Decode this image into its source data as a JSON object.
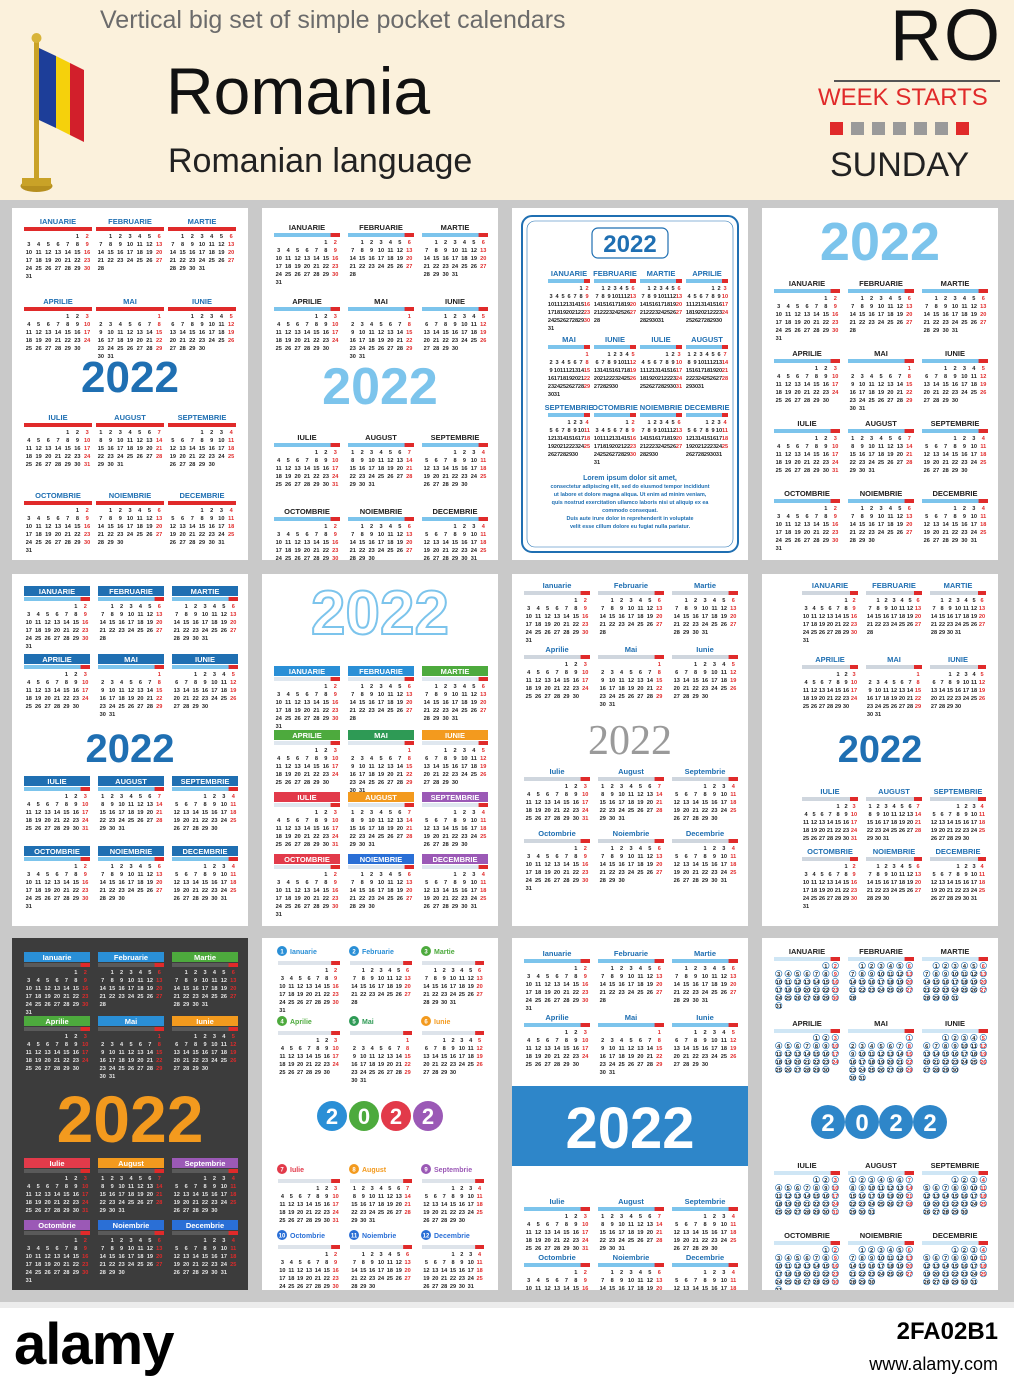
{
  "header": {
    "subtitle": "Vertical big set of simple pocket calendars",
    "country": "Romania",
    "language": "Romanian language",
    "code": "RO",
    "week_starts": "WEEK STARTS",
    "start_day": "SUNDAY"
  },
  "year": "2022",
  "year_digits": [
    "2",
    "0",
    "2",
    "2"
  ],
  "months_upper": [
    "IANUARIE",
    "FEBRUARIE",
    "MARTIE",
    "APRILIE",
    "MAI",
    "IUNIE",
    "IULIE",
    "AUGUST",
    "SEPTEMBRIE",
    "OCTOMBRIE",
    "NOIEMBRIE",
    "DECEMBRIE"
  ],
  "months_title": [
    "Ianuarie",
    "Februarie",
    "Martie",
    "Aprilie",
    "Mai",
    "Iunie",
    "Iulie",
    "August",
    "Septembrie",
    "Octombrie",
    "Noiembrie",
    "Decembrie"
  ],
  "weekdays": [
    "LU",
    "MA",
    "MI",
    "JO",
    "VI",
    "SÂ",
    "DU"
  ],
  "month_numbers": [
    "1",
    "2",
    "3",
    "4",
    "5",
    "6",
    "7",
    "8",
    "9",
    "10",
    "11",
    "12"
  ],
  "lorem": [
    "Lorem ipsum dolor sit amet,",
    "consectetur adipiscing elit, sed do eiusmod tempor incididunt",
    "ut labore et dolore magna aliqua. Ut enim ad minim veniam,",
    "quis nostrud exercitation ullamco laboris nisi ut aliquip ex ea",
    "commodo consequat.",
    "Duis aute irure dolor in reprehenderit in voluptate",
    "velit esse cillum dolore eu fugiat nulla pariatur."
  ],
  "colors": {
    "blue": "#1f6fb2",
    "light_blue": "#7cc4ec",
    "red": "#e02a2a",
    "header_bg": "#fbf1dc",
    "dark_card": "#3c3c3c",
    "orange": "#f39a1e"
  },
  "footer": {
    "logo": "alamy",
    "image_id": "2FA02B1",
    "url": "www.alamy.com"
  }
}
